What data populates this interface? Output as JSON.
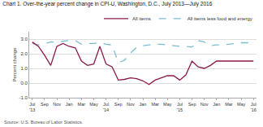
{
  "chart_data": {
    "type": "line",
    "title": "Chart 1. Over-the-year percent change in CPI-U, Washington, D.C., July 2013—July 2016",
    "ylabel": "Percent change",
    "annotations": [
      "Source: U.S. Bureau of Labor Statistics."
    ],
    "categories": [
      "Jul\n'13",
      null,
      "Sep",
      null,
      "Nov",
      null,
      "Jan",
      null,
      "Mar",
      null,
      "May",
      null,
      "Jul\n'14",
      null,
      "Sep",
      null,
      "Nov",
      null,
      "Jan",
      null,
      "Mar",
      null,
      "May",
      null,
      "Jul\n'15",
      null,
      "Sep",
      null,
      "Nov",
      null,
      "Jan",
      null,
      "Mar",
      null,
      "May",
      null,
      "Jul\n'16"
    ],
    "series": [
      {
        "name": "All items less food and energy",
        "color": "#7bbcd5",
        "line_style": "dashed",
        "values": [
          2.7,
          2.6,
          2.7,
          2.8,
          2.8,
          2.85,
          2.9,
          2.9,
          2.65,
          2.7,
          2.7,
          2.75,
          2.65,
          2.6,
          1.4,
          1.55,
          2.05,
          2.45,
          2.55,
          2.6,
          2.65,
          2.65,
          2.6,
          2.55,
          2.5,
          2.5,
          2.45,
          2.9,
          2.8,
          2.55,
          2.6,
          2.6,
          2.65,
          2.7,
          2.75,
          2.75,
          2.75
        ]
      },
      {
        "name": "All items",
        "color": "#8B1A4A",
        "line_style": "solid",
        "values": [
          2.8,
          2.5,
          1.9,
          1.2,
          2.5,
          2.7,
          2.5,
          2.4,
          1.5,
          1.2,
          1.3,
          2.5,
          1.3,
          1.1,
          0.2,
          0.25,
          0.35,
          0.3,
          0.15,
          -0.1,
          0.2,
          0.35,
          0.5,
          0.5,
          0.2,
          0.55,
          1.5,
          1.1,
          1.0,
          1.2,
          1.5,
          1.5,
          1.5,
          1.5,
          1.5,
          1.5,
          1.5
        ]
      }
    ],
    "ylim": [
      -1.0,
      3.5
    ],
    "yticks": [
      {
        "value": -1.0,
        "label": "-1.0"
      },
      {
        "value": 0.0,
        "label": "0.0"
      },
      {
        "value": 1.0,
        "label": "1.0"
      },
      {
        "value": 2.0,
        "label": "2.0"
      },
      {
        "value": 3.0,
        "label": "3.0"
      }
    ],
    "grid": true,
    "legend": "upper right"
  }
}
